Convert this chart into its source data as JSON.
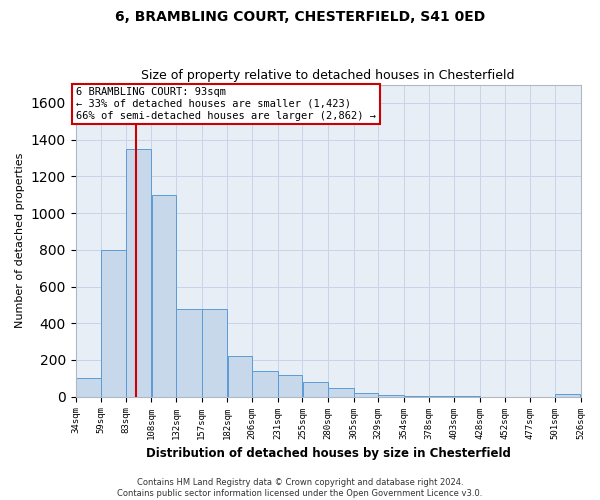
{
  "title1": "6, BRAMBLING COURT, CHESTERFIELD, S41 0ED",
  "title2": "Size of property relative to detached houses in Chesterfield",
  "xlabel": "Distribution of detached houses by size in Chesterfield",
  "ylabel": "Number of detached properties",
  "footer1": "Contains HM Land Registry data © Crown copyright and database right 2024.",
  "footer2": "Contains public sector information licensed under the Open Government Licence v3.0.",
  "annotation_line1": "6 BRAMBLING COURT: 93sqm",
  "annotation_line2": "← 33% of detached houses are smaller (1,423)",
  "annotation_line3": "66% of semi-detached houses are larger (2,862) →",
  "property_size": 93,
  "bin_edges": [
    34,
    59,
    83,
    108,
    132,
    157,
    182,
    206,
    231,
    255,
    280,
    305,
    329,
    354,
    378,
    403,
    428,
    452,
    477,
    501,
    526
  ],
  "bar_heights": [
    100,
    800,
    1350,
    1100,
    480,
    480,
    220,
    140,
    120,
    80,
    50,
    20,
    10,
    5,
    2,
    2,
    0,
    0,
    0,
    15
  ],
  "bar_color": "#c8d8eb",
  "bar_edge_color": "#5b9bd5",
  "red_line_color": "#cc0000",
  "annotation_box_edge_color": "#cc0000",
  "grid_color": "#c8d4e8",
  "background_color": "#e8eef6",
  "ylim": [
    0,
    1700
  ],
  "yticks": [
    0,
    200,
    400,
    600,
    800,
    1000,
    1200,
    1400,
    1600
  ]
}
